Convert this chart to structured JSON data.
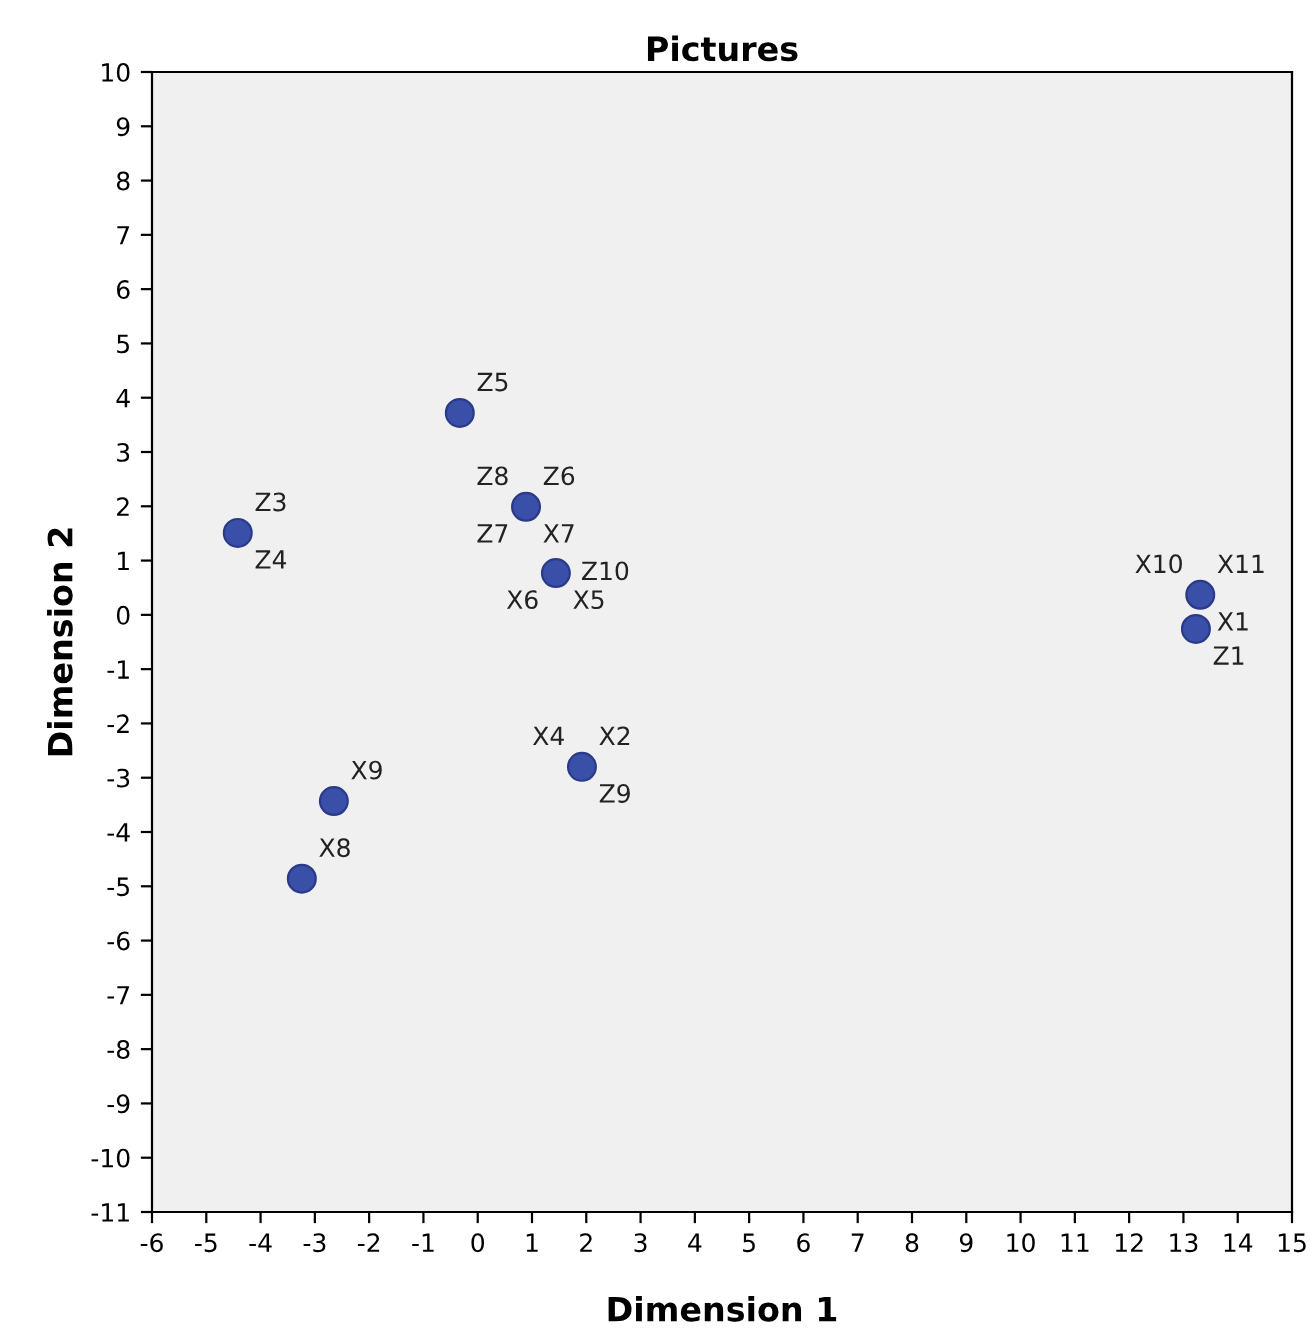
{
  "chart_data": {
    "type": "scatter",
    "title": "Pictures",
    "xlabel": "Dimension 1",
    "ylabel": "Dimension 2",
    "x": [
      -0.33,
      -4.42,
      0.89,
      1.44,
      1.92,
      -2.65,
      -3.24,
      13.31,
      13.23
    ],
    "values": [
      3.72,
      1.51,
      1.99,
      0.77,
      -2.8,
      -3.43,
      -4.86,
      0.37,
      -0.26
    ],
    "color": "#3a4fa8",
    "marker": "circle",
    "grid": false,
    "legend": false,
    "xlim": [
      -6,
      15
    ],
    "xticks": [
      -6,
      -5,
      -4,
      -3,
      -2,
      -1,
      0,
      1,
      2,
      3,
      4,
      5,
      6,
      7,
      8,
      9,
      10,
      11,
      12,
      13,
      14,
      15
    ],
    "ylim": [
      -11,
      10
    ],
    "yticks": [
      -11,
      -10,
      -9,
      -8,
      -7,
      -6,
      -5,
      -4,
      -3,
      -2,
      -1,
      0,
      1,
      2,
      3,
      4,
      5,
      6,
      7,
      8,
      9,
      10
    ],
    "annotations": [
      {
        "text": "Z5",
        "x": -0.33,
        "y": 3.72
      },
      {
        "text": "Z3",
        "x": -4.42,
        "y": 1.51
      },
      {
        "text": "Z4",
        "x": -4.42,
        "y": 1.51
      },
      {
        "text": "Z6",
        "x": 0.89,
        "y": 1.99
      },
      {
        "text": "X7",
        "x": 0.89,
        "y": 1.99
      },
      {
        "text": "Z8",
        "x": 0.89,
        "y": 1.99
      },
      {
        "text": "Z7",
        "x": 0.89,
        "y": 1.99
      },
      {
        "text": "X5",
        "x": 1.44,
        "y": 0.77
      },
      {
        "text": "X6",
        "x": 1.44,
        "y": 0.77
      },
      {
        "text": "Z10",
        "x": 1.44,
        "y": 0.77
      },
      {
        "text": "X2",
        "x": 1.92,
        "y": -2.8
      },
      {
        "text": "Z9",
        "x": 1.92,
        "y": -2.8
      },
      {
        "text": "X4",
        "x": 1.92,
        "y": -2.8
      },
      {
        "text": "X9",
        "x": -2.65,
        "y": -3.43
      },
      {
        "text": "X8",
        "x": -3.24,
        "y": -4.86
      },
      {
        "text": "X11",
        "x": 13.31,
        "y": 0.37
      },
      {
        "text": "X1",
        "x": 13.31,
        "y": 0.37
      },
      {
        "text": "X10",
        "x": 13.31,
        "y": 0.37
      },
      {
        "text": "Z1",
        "x": 13.23,
        "y": -0.26
      }
    ]
  }
}
